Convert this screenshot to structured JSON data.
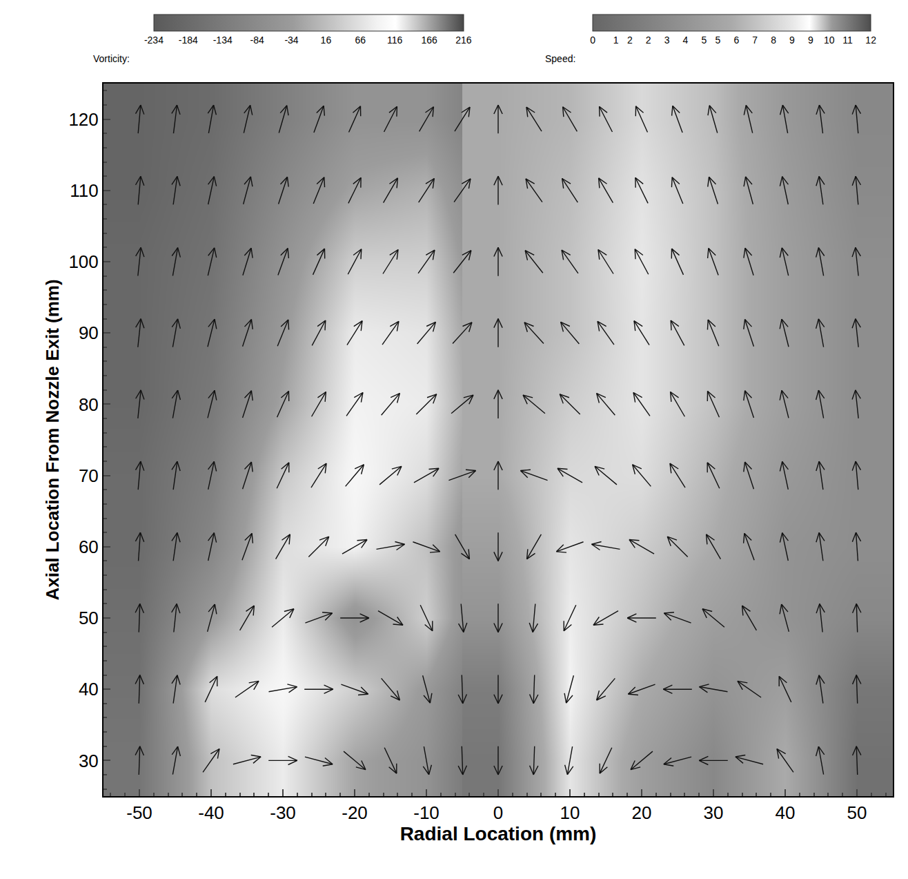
{
  "chart_data": {
    "type": "vector_field",
    "xlabel": "Radial Location (mm)",
    "ylabel": "Axial Location From Nozzle Exit (mm)",
    "xlim": [
      -55,
      55
    ],
    "ylim": [
      25,
      125
    ],
    "xticks": [
      -50,
      -40,
      -30,
      -20,
      -10,
      0,
      10,
      20,
      30,
      40,
      50
    ],
    "yticks": [
      30,
      40,
      50,
      60,
      70,
      80,
      90,
      100,
      110,
      120
    ],
    "grid": false,
    "vectors": {
      "x": [
        -50,
        -45,
        -40,
        -35,
        -30,
        -25,
        -20,
        -15,
        -10,
        -5,
        0,
        5,
        10,
        15,
        20,
        25,
        30,
        35,
        40,
        45,
        50
      ],
      "y": [
        30,
        40,
        50,
        60,
        70,
        80,
        90,
        100,
        110,
        120
      ],
      "angle_deg": [
        [
          88,
          80,
          55,
          15,
          0,
          -15,
          -40,
          -65,
          -80,
          -88,
          -90,
          -92,
          -100,
          -115,
          -140,
          -165,
          180,
          165,
          125,
          100,
          92
        ],
        [
          88,
          82,
          65,
          35,
          10,
          0,
          -20,
          -50,
          -75,
          -88,
          -90,
          -92,
          -105,
          -130,
          -160,
          180,
          170,
          145,
          115,
          98,
          92
        ],
        [
          88,
          84,
          75,
          60,
          40,
          20,
          0,
          -30,
          -65,
          -85,
          -90,
          -95,
          -115,
          -150,
          180,
          160,
          140,
          120,
          105,
          96,
          92
        ],
        [
          86,
          82,
          78,
          70,
          60,
          45,
          30,
          10,
          -20,
          -60,
          -90,
          -120,
          -160,
          170,
          150,
          135,
          120,
          110,
          102,
          98,
          94
        ],
        [
          85,
          82,
          78,
          72,
          65,
          58,
          50,
          40,
          30,
          20,
          90,
          160,
          150,
          140,
          130,
          122,
          115,
          108,
          102,
          98,
          95
        ],
        [
          84,
          80,
          76,
          72,
          66,
          60,
          55,
          50,
          45,
          40,
          90,
          140,
          135,
          130,
          125,
          120,
          114,
          108,
          104,
          100,
          96
        ],
        [
          84,
          80,
          76,
          72,
          68,
          62,
          58,
          55,
          50,
          48,
          90,
          132,
          130,
          125,
          122,
          118,
          112,
          108,
          104,
          100,
          96
        ],
        [
          84,
          80,
          77,
          73,
          70,
          66,
          62,
          58,
          55,
          52,
          90,
          128,
          125,
          122,
          118,
          114,
          110,
          107,
          103,
          100,
          96
        ],
        [
          85,
          82,
          78,
          75,
          72,
          68,
          64,
          60,
          57,
          55,
          90,
          125,
          123,
          120,
          116,
          112,
          108,
          105,
          102,
          98,
          95
        ],
        [
          85,
          83,
          80,
          77,
          74,
          70,
          66,
          63,
          60,
          58,
          90,
          122,
          120,
          117,
          114,
          110,
          106,
          103,
          100,
          97,
          95
        ]
      ]
    },
    "vorticity": {
      "label": "Vorticity:",
      "x": [
        -50,
        -40,
        -30,
        -20,
        -10,
        0
      ],
      "y": [
        30,
        40,
        50,
        60,
        70,
        80,
        90,
        100,
        110,
        120
      ],
      "values": [
        [
          -150,
          20,
          80,
          -20,
          -60,
          -200
        ],
        [
          -160,
          60,
          100,
          40,
          -40,
          -180
        ],
        [
          -170,
          -40,
          80,
          -60,
          40,
          -150
        ],
        [
          -180,
          -100,
          60,
          90,
          20,
          -120
        ],
        [
          -180,
          -120,
          30,
          100,
          60,
          -100
        ],
        [
          -190,
          -140,
          -20,
          90,
          80,
          -90
        ],
        [
          -190,
          -150,
          -40,
          80,
          70,
          -100
        ],
        [
          -190,
          -160,
          -60,
          40,
          40,
          -110
        ],
        [
          -200,
          -170,
          -90,
          -20,
          0,
          -130
        ],
        [
          -200,
          -180,
          -120,
          -60,
          -60,
          -150
        ]
      ],
      "range": [
        -234,
        216
      ],
      "ticks": [
        -234,
        -184,
        -134,
        -84,
        -34,
        16,
        66,
        116,
        166,
        216
      ]
    },
    "speed": {
      "label": "Speed:",
      "x": [
        0,
        10,
        20,
        30,
        40,
        50
      ],
      "y": [
        30,
        40,
        50,
        60,
        70,
        80,
        90,
        100,
        110,
        120
      ],
      "values": [
        [
          1.5,
          8.5,
          5,
          3,
          6,
          1
        ],
        [
          2,
          9,
          6,
          4,
          5,
          1.5
        ],
        [
          4,
          8.8,
          7,
          5,
          4,
          3
        ],
        [
          5,
          8.5,
          7.5,
          6,
          4,
          3.5
        ],
        [
          6,
          8,
          8.2,
          6.5,
          4.5,
          3.5
        ],
        [
          6,
          7.5,
          8.5,
          7,
          5,
          3.5
        ],
        [
          6,
          7,
          8.5,
          7,
          5,
          3.5
        ],
        [
          6,
          7,
          8.6,
          7,
          5,
          3.5
        ],
        [
          6,
          6.8,
          8.4,
          7,
          4.8,
          3.2
        ],
        [
          6,
          6.5,
          8,
          6.8,
          4.5,
          3
        ]
      ],
      "range": [
        0,
        12
      ],
      "ticks": [
        0,
        1,
        {
          "value": 1.6,
          "label": "2"
        },
        {
          "value": 2.4,
          "label": "2"
        },
        {
          "value": 3.2,
          "label": "3"
        },
        4,
        {
          "value": 4.8,
          "label": "5"
        },
        {
          "value": 5.4,
          "label": "5"
        },
        {
          "value": 6.2,
          "label": "6"
        },
        7,
        {
          "value": 7.8,
          "label": "8"
        },
        {
          "value": 8.6,
          "label": "9"
        },
        {
          "value": 9.4,
          "label": "9"
        },
        {
          "value": 10.2,
          "label": "10"
        },
        11,
        12
      ]
    }
  }
}
